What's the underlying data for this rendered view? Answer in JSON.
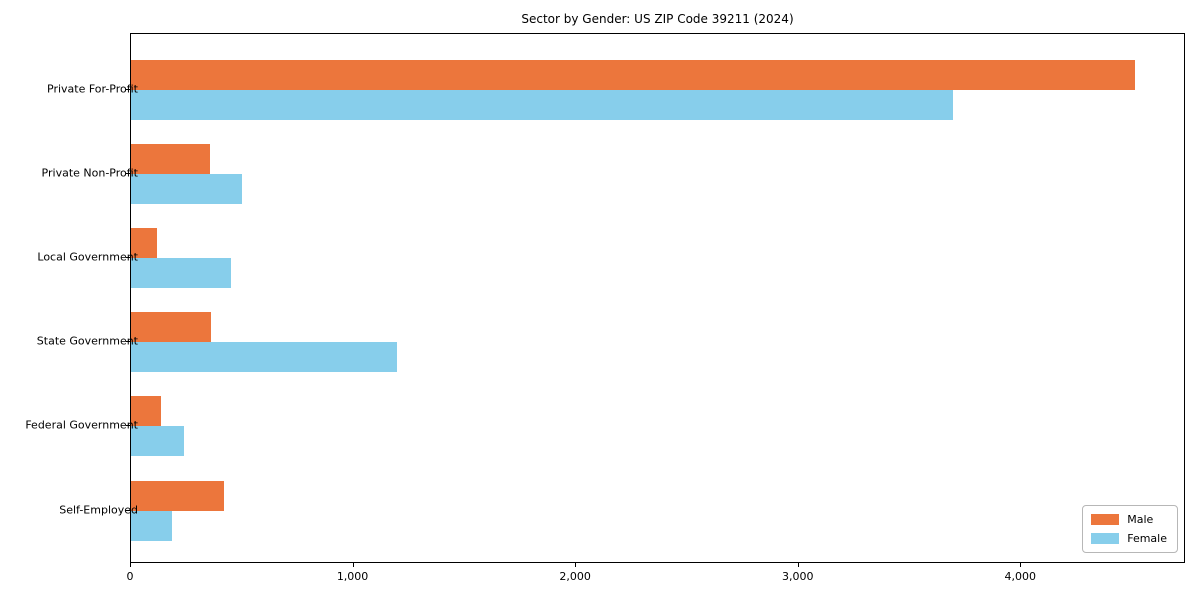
{
  "title": "Sector by Gender: US ZIP Code 39211 (2024)",
  "colors": {
    "male": "#EC763C",
    "female": "#87CEEB",
    "spine": "#000000",
    "legend_border": "#B7B7B7",
    "background": "#FFFFFF",
    "text": "#000000"
  },
  "chart_data": {
    "type": "bar",
    "orientation": "horizontal",
    "title": "Sector by Gender: US ZIP Code 39211 (2024)",
    "categories": [
      "Private For-Profit",
      "Private Non-Profit",
      "Local Government",
      "State Government",
      "Federal Government",
      "Self-Employed"
    ],
    "series": [
      {
        "name": "Male",
        "color": "#EC763C",
        "values": [
          4513,
          355,
          117,
          359,
          135,
          418
        ]
      },
      {
        "name": "Female",
        "color": "#87CEEB",
        "values": [
          3692,
          498,
          449,
          1195,
          238,
          184
        ]
      }
    ],
    "xlabel": "",
    "ylabel": "",
    "xlim": [
      0,
      4740
    ],
    "x_ticks": [
      0,
      1000,
      2000,
      3000,
      4000
    ],
    "x_tick_labels": [
      "0",
      "1,000",
      "2,000",
      "3,000",
      "4,000"
    ],
    "grid": false,
    "legend": {
      "position": "lower right",
      "entries": [
        "Male",
        "Female"
      ]
    }
  }
}
